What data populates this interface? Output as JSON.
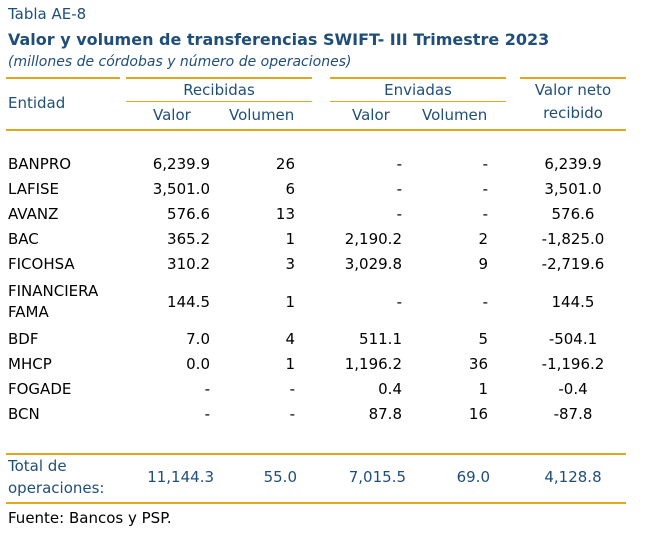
{
  "table_tag": "Tabla AE-8",
  "title": "Valor y volumen de transferencias SWIFT- III Trimestre 2023",
  "subtitle": "(millones de córdobas y número de operaciones)",
  "headers": {
    "entidad": "Entidad",
    "recibidas": "Recibidas",
    "enviadas": "Enviadas",
    "valor_neto_1": "Valor neto",
    "valor_neto_2": "recibido",
    "valor": "Valor",
    "volumen": "Volumen"
  },
  "rows": [
    {
      "entidad": "BANPRO",
      "rec_valor": "6,239.9",
      "rec_vol": "26",
      "env_valor": "-",
      "env_vol": "-",
      "neto": "6,239.9"
    },
    {
      "entidad": "LAFISE",
      "rec_valor": "3,501.0",
      "rec_vol": "6",
      "env_valor": "-",
      "env_vol": "-",
      "neto": "3,501.0"
    },
    {
      "entidad": "AVANZ",
      "rec_valor": "576.6",
      "rec_vol": "13",
      "env_valor": "-",
      "env_vol": "-",
      "neto": "576.6"
    },
    {
      "entidad": "BAC",
      "rec_valor": "365.2",
      "rec_vol": "1",
      "env_valor": "2,190.2",
      "env_vol": "2",
      "neto": "-1,825.0"
    },
    {
      "entidad": "FICOHSA",
      "rec_valor": "310.2",
      "rec_vol": "3",
      "env_valor": "3,029.8",
      "env_vol": "9",
      "neto": "-2,719.6"
    },
    {
      "entidad": "FINANCIERA",
      "entidad2": "FAMA",
      "rec_valor": "144.5",
      "rec_vol": "1",
      "env_valor": "-",
      "env_vol": "-",
      "neto": "144.5"
    },
    {
      "entidad": "BDF",
      "rec_valor": "7.0",
      "rec_vol": "4",
      "env_valor": "511.1",
      "env_vol": "5",
      "neto": "-504.1"
    },
    {
      "entidad": "MHCP",
      "rec_valor": "0.0",
      "rec_vol": "1",
      "env_valor": "1,196.2",
      "env_vol": "36",
      "neto": "-1,196.2"
    },
    {
      "entidad": "FOGADE",
      "rec_valor": "-",
      "rec_vol": "-",
      "env_valor": "0.4",
      "env_vol": "1",
      "neto": "-0.4"
    },
    {
      "entidad": "BCN",
      "rec_valor": "-",
      "rec_vol": "-",
      "env_valor": "87.8",
      "env_vol": "16",
      "neto": "-87.8"
    }
  ],
  "total": {
    "label1": "Total de",
    "label2": "operaciones:",
    "rec_valor": "11,144.3",
    "rec_vol": "55.0",
    "env_valor": "7,015.5",
    "env_vol": "69.0",
    "neto": "4,128.8"
  },
  "source": "Fuente: Bancos y PSP.",
  "colors": {
    "accent_line": "#e1a81d",
    "header_text": "#1f4e79"
  }
}
